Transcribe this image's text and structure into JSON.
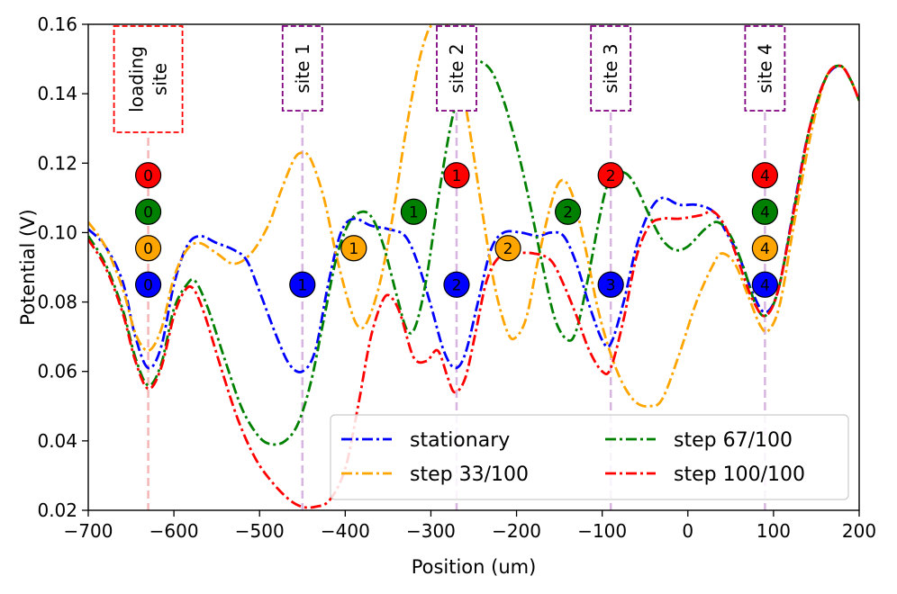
{
  "chart_data": {
    "type": "line",
    "xlabel": "Position (um)",
    "ylabel": "Potential (V)",
    "xlim": [
      -700,
      200
    ],
    "ylim": [
      0.02,
      0.16
    ],
    "xticks": [
      -700,
      -600,
      -500,
      -400,
      -300,
      -200,
      -100,
      0,
      100,
      200
    ],
    "yticks": [
      0.02,
      0.04,
      0.06,
      0.08,
      0.1,
      0.12,
      0.14,
      0.16
    ],
    "xtick_labels": [
      "−700",
      "−600",
      "−500",
      "−400",
      "−300",
      "−200",
      "−100",
      "0",
      "100",
      "200"
    ],
    "ytick_labels": [
      "0.02",
      "0.04",
      "0.06",
      "0.08",
      "0.10",
      "0.12",
      "0.14",
      "0.16"
    ],
    "legend_position": "lower-right",
    "series": [
      {
        "name": "stationary",
        "color": "#0000ff",
        "points": [
          [
            -700,
            0.101
          ],
          [
            -680,
            0.096
          ],
          [
            -660,
            0.086
          ],
          [
            -645,
            0.07
          ],
          [
            -630,
            0.061
          ],
          [
            -615,
            0.067
          ],
          [
            -600,
            0.085
          ],
          [
            -585,
            0.096
          ],
          [
            -570,
            0.099
          ],
          [
            -550,
            0.097
          ],
          [
            -530,
            0.095
          ],
          [
            -515,
            0.092
          ],
          [
            -500,
            0.083
          ],
          [
            -480,
            0.07
          ],
          [
            -465,
            0.062
          ],
          [
            -450,
            0.06
          ],
          [
            -435,
            0.066
          ],
          [
            -420,
            0.085
          ],
          [
            -405,
            0.1
          ],
          [
            -390,
            0.104
          ],
          [
            -370,
            0.102
          ],
          [
            -350,
            0.101
          ],
          [
            -330,
            0.099
          ],
          [
            -315,
            0.091
          ],
          [
            -300,
            0.079
          ],
          [
            -285,
            0.066
          ],
          [
            -272,
            0.061
          ],
          [
            -260,
            0.065
          ],
          [
            -245,
            0.08
          ],
          [
            -230,
            0.095
          ],
          [
            -215,
            0.1
          ],
          [
            -195,
            0.1
          ],
          [
            -175,
            0.099
          ],
          [
            -160,
            0.1
          ],
          [
            -145,
            0.099
          ],
          [
            -130,
            0.091
          ],
          [
            -115,
            0.079
          ],
          [
            -100,
            0.069
          ],
          [
            -90,
            0.068
          ],
          [
            -75,
            0.08
          ],
          [
            -60,
            0.096
          ],
          [
            -45,
            0.106
          ],
          [
            -30,
            0.11
          ],
          [
            -10,
            0.108
          ],
          [
            10,
            0.108
          ],
          [
            30,
            0.106
          ],
          [
            45,
            0.1
          ],
          [
            60,
            0.093
          ],
          [
            75,
            0.083
          ],
          [
            90,
            0.077
          ],
          [
            105,
            0.083
          ],
          [
            120,
            0.102
          ],
          [
            140,
            0.128
          ],
          [
            160,
            0.144
          ],
          [
            178,
            0.148
          ],
          [
            190,
            0.144
          ],
          [
            200,
            0.138
          ]
        ]
      },
      {
        "name": "step 33/100",
        "color": "#ffa500",
        "points": [
          [
            -700,
            0.103
          ],
          [
            -680,
            0.096
          ],
          [
            -660,
            0.084
          ],
          [
            -645,
            0.071
          ],
          [
            -630,
            0.066
          ],
          [
            -615,
            0.072
          ],
          [
            -600,
            0.087
          ],
          [
            -585,
            0.095
          ],
          [
            -570,
            0.097
          ],
          [
            -550,
            0.094
          ],
          [
            -530,
            0.091
          ],
          [
            -510,
            0.094
          ],
          [
            -490,
            0.102
          ],
          [
            -475,
            0.112
          ],
          [
            -460,
            0.121
          ],
          [
            -450,
            0.123
          ],
          [
            -440,
            0.121
          ],
          [
            -425,
            0.11
          ],
          [
            -410,
            0.093
          ],
          [
            -395,
            0.079
          ],
          [
            -385,
            0.073
          ],
          [
            -375,
            0.074
          ],
          [
            -360,
            0.085
          ],
          [
            -345,
            0.104
          ],
          [
            -330,
            0.128
          ],
          [
            -315,
            0.148
          ],
          [
            -305,
            0.157
          ],
          [
            -298,
            0.16
          ],
          [
            -288,
            0.161
          ],
          [
            -278,
            0.158
          ],
          [
            -268,
            0.148
          ],
          [
            -255,
            0.13
          ],
          [
            -240,
            0.106
          ],
          [
            -225,
            0.084
          ],
          [
            -210,
            0.071
          ],
          [
            -200,
            0.07
          ],
          [
            -188,
            0.076
          ],
          [
            -175,
            0.092
          ],
          [
            -160,
            0.108
          ],
          [
            -148,
            0.115
          ],
          [
            -135,
            0.111
          ],
          [
            -120,
            0.096
          ],
          [
            -105,
            0.078
          ],
          [
            -90,
            0.065
          ],
          [
            -75,
            0.056
          ],
          [
            -60,
            0.051
          ],
          [
            -45,
            0.05
          ],
          [
            -30,
            0.052
          ],
          [
            -10,
            0.065
          ],
          [
            10,
            0.08
          ],
          [
            30,
            0.091
          ],
          [
            40,
            0.094
          ],
          [
            55,
            0.091
          ],
          [
            70,
            0.082
          ],
          [
            85,
            0.073
          ],
          [
            95,
            0.072
          ],
          [
            108,
            0.08
          ],
          [
            125,
            0.104
          ],
          [
            145,
            0.13
          ],
          [
            162,
            0.145
          ],
          [
            178,
            0.148
          ],
          [
            190,
            0.144
          ],
          [
            200,
            0.138
          ]
        ]
      },
      {
        "name": "step 67/100",
        "color": "#008000",
        "points": [
          [
            -700,
            0.099
          ],
          [
            -680,
            0.091
          ],
          [
            -660,
            0.078
          ],
          [
            -645,
            0.064
          ],
          [
            -630,
            0.056
          ],
          [
            -615,
            0.062
          ],
          [
            -600,
            0.078
          ],
          [
            -585,
            0.085
          ],
          [
            -575,
            0.086
          ],
          [
            -560,
            0.078
          ],
          [
            -540,
            0.063
          ],
          [
            -520,
            0.049
          ],
          [
            -500,
            0.041
          ],
          [
            -485,
            0.039
          ],
          [
            -470,
            0.04
          ],
          [
            -455,
            0.045
          ],
          [
            -440,
            0.057
          ],
          [
            -425,
            0.075
          ],
          [
            -410,
            0.093
          ],
          [
            -395,
            0.103
          ],
          [
            -380,
            0.106
          ],
          [
            -368,
            0.104
          ],
          [
            -355,
            0.096
          ],
          [
            -340,
            0.082
          ],
          [
            -328,
            0.072
          ],
          [
            -318,
            0.073
          ],
          [
            -305,
            0.087
          ],
          [
            -290,
            0.112
          ],
          [
            -275,
            0.133
          ],
          [
            -262,
            0.143
          ],
          [
            -250,
            0.149
          ],
          [
            -240,
            0.149
          ],
          [
            -228,
            0.146
          ],
          [
            -215,
            0.138
          ],
          [
            -200,
            0.125
          ],
          [
            -185,
            0.109
          ],
          [
            -170,
            0.091
          ],
          [
            -155,
            0.075
          ],
          [
            -140,
            0.069
          ],
          [
            -130,
            0.072
          ],
          [
            -118,
            0.085
          ],
          [
            -105,
            0.102
          ],
          [
            -95,
            0.113
          ],
          [
            -85,
            0.117
          ],
          [
            -72,
            0.117
          ],
          [
            -60,
            0.113
          ],
          [
            -45,
            0.105
          ],
          [
            -30,
            0.098
          ],
          [
            -15,
            0.095
          ],
          [
            0,
            0.096
          ],
          [
            20,
            0.101
          ],
          [
            35,
            0.103
          ],
          [
            50,
            0.099
          ],
          [
            65,
            0.09
          ],
          [
            78,
            0.08
          ],
          [
            90,
            0.076
          ],
          [
            105,
            0.083
          ],
          [
            122,
            0.104
          ],
          [
            142,
            0.13
          ],
          [
            162,
            0.145
          ],
          [
            178,
            0.148
          ],
          [
            190,
            0.144
          ],
          [
            200,
            0.138
          ]
        ]
      },
      {
        "name": "step 100/100",
        "color": "#ff0000",
        "points": [
          [
            -700,
            0.098
          ],
          [
            -680,
            0.09
          ],
          [
            -660,
            0.077
          ],
          [
            -645,
            0.063
          ],
          [
            -630,
            0.055
          ],
          [
            -615,
            0.061
          ],
          [
            -600,
            0.076
          ],
          [
            -588,
            0.083
          ],
          [
            -578,
            0.084
          ],
          [
            -565,
            0.077
          ],
          [
            -545,
            0.061
          ],
          [
            -525,
            0.046
          ],
          [
            -505,
            0.035
          ],
          [
            -485,
            0.028
          ],
          [
            -465,
            0.023
          ],
          [
            -450,
            0.021
          ],
          [
            -435,
            0.021
          ],
          [
            -418,
            0.023
          ],
          [
            -400,
            0.032
          ],
          [
            -385,
            0.05
          ],
          [
            -370,
            0.07
          ],
          [
            -355,
            0.081
          ],
          [
            -345,
            0.081
          ],
          [
            -335,
            0.076
          ],
          [
            -320,
            0.064
          ],
          [
            -305,
            0.063
          ],
          [
            -292,
            0.066
          ],
          [
            -280,
            0.058
          ],
          [
            -272,
            0.054
          ],
          [
            -260,
            0.058
          ],
          [
            -248,
            0.071
          ],
          [
            -235,
            0.086
          ],
          [
            -220,
            0.093
          ],
          [
            -200,
            0.094
          ],
          [
            -180,
            0.094
          ],
          [
            -160,
            0.092
          ],
          [
            -145,
            0.085
          ],
          [
            -130,
            0.076
          ],
          [
            -115,
            0.066
          ],
          [
            -100,
            0.06
          ],
          [
            -90,
            0.061
          ],
          [
            -75,
            0.075
          ],
          [
            -60,
            0.093
          ],
          [
            -45,
            0.102
          ],
          [
            -30,
            0.104
          ],
          [
            -10,
            0.104
          ],
          [
            15,
            0.105
          ],
          [
            30,
            0.106
          ],
          [
            45,
            0.101
          ],
          [
            60,
            0.091
          ],
          [
            75,
            0.081
          ],
          [
            90,
            0.076
          ],
          [
            105,
            0.083
          ],
          [
            122,
            0.104
          ],
          [
            142,
            0.13
          ],
          [
            162,
            0.145
          ],
          [
            178,
            0.148
          ],
          [
            190,
            0.144
          ],
          [
            200,
            0.138
          ]
        ]
      }
    ],
    "sites": [
      {
        "label": "loading site",
        "lines": [
          "loading",
          "site"
        ],
        "x": -630,
        "line_color": "#f4b6b6",
        "box_color": "#ff0000"
      },
      {
        "label": "site 1",
        "lines": [
          "site 1"
        ],
        "x": -450,
        "line_color": "#d8b4e0",
        "box_color": "#800080"
      },
      {
        "label": "site 2",
        "lines": [
          "site 2"
        ],
        "x": -270,
        "line_color": "#d8b4e0",
        "box_color": "#800080"
      },
      {
        "label": "site 3",
        "lines": [
          "site 3"
        ],
        "x": -90,
        "line_color": "#d8b4e0",
        "box_color": "#800080"
      },
      {
        "label": "site 4",
        "lines": [
          "site 4"
        ],
        "x": 90,
        "line_color": "#d8b4e0",
        "box_color": "#800080"
      }
    ],
    "markers": [
      {
        "series": "stationary",
        "color": "#0000ff",
        "y": 0.085,
        "points": [
          {
            "x": -630,
            "label": "0"
          },
          {
            "x": -450,
            "label": "1"
          },
          {
            "x": -270,
            "label": "2"
          },
          {
            "x": -90,
            "label": "3"
          },
          {
            "x": 90,
            "label": "4"
          }
        ]
      },
      {
        "series": "step 33/100",
        "color": "#ffa500",
        "y": 0.0955,
        "points": [
          {
            "x": -630,
            "label": "0"
          },
          {
            "x": -390,
            "label": "1"
          },
          {
            "x": -210,
            "label": "2"
          },
          {
            "x": 90,
            "label": "4"
          }
        ]
      },
      {
        "series": "step 67/100",
        "color": "#008000",
        "y": 0.106,
        "points": [
          {
            "x": -630,
            "label": "0"
          },
          {
            "x": -320,
            "label": "1"
          },
          {
            "x": -140,
            "label": "2"
          },
          {
            "x": 90,
            "label": "4"
          }
        ]
      },
      {
        "series": "step 100/100",
        "color": "#ff0000",
        "y": 0.1165,
        "points": [
          {
            "x": -630,
            "label": "0"
          },
          {
            "x": -270,
            "label": "1"
          },
          {
            "x": -90,
            "label": "2"
          },
          {
            "x": 90,
            "label": "4"
          }
        ]
      }
    ]
  }
}
